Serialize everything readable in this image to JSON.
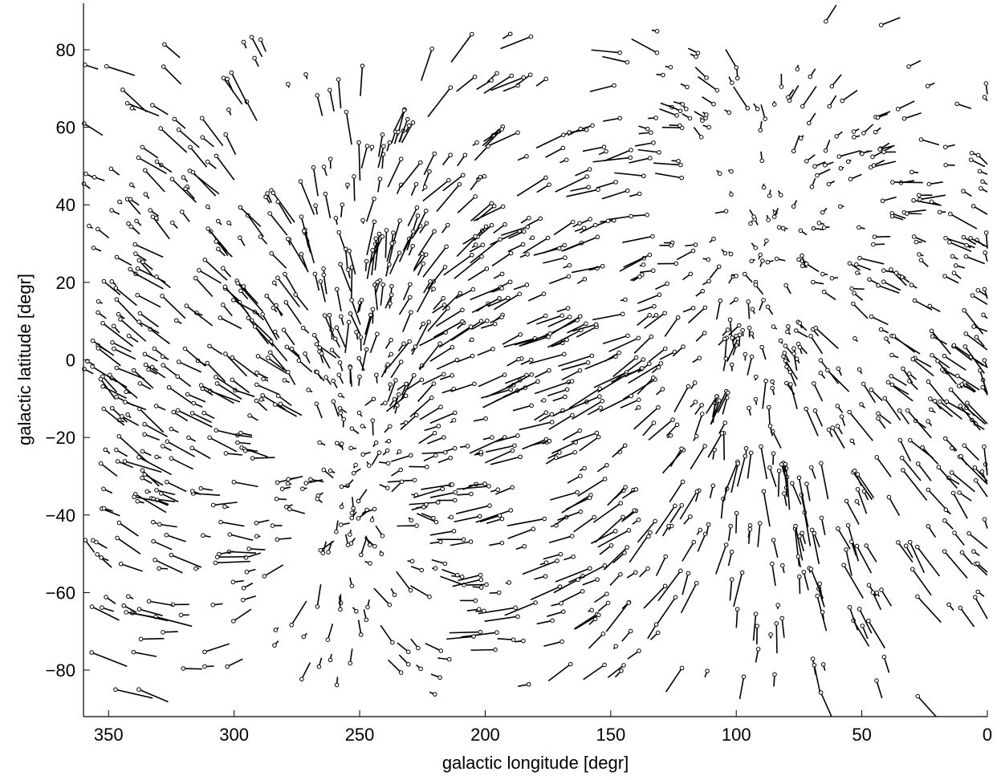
{
  "chart_data": {
    "type": "scatter",
    "marker": "circle-with-vector",
    "xlabel": "galactic longitude  [degr]",
    "ylabel": "galactic latitude  [degr]",
    "xlim": [
      360,
      0
    ],
    "ylim": [
      -92,
      92
    ],
    "x_reversed": true,
    "grid": false,
    "x_ticks": [
      350,
      300,
      250,
      200,
      150,
      100,
      50,
      0
    ],
    "y_ticks": [
      80,
      60,
      40,
      20,
      0,
      -20,
      -40,
      -60,
      -80
    ],
    "apex_approx": {
      "l": 80,
      "b": 10
    },
    "antapex_approx": {
      "l": 260,
      "b": -10
    },
    "point_count": 1500,
    "stroke_color": "#000000",
    "background_color": "#ffffff"
  }
}
